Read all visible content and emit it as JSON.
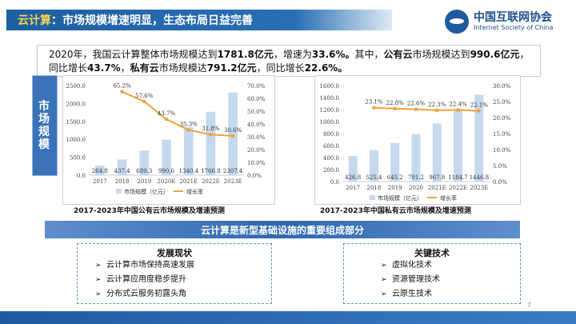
{
  "header": {
    "title_prefix": "云计算",
    "title_rest": "：市场规模增速明显，生态布局日益完善",
    "logo_cn": "中国互联网协会",
    "logo_en": "Internet Society of China"
  },
  "intro": {
    "p1": "2020年，我国云计算整体市场规模达到",
    "v1": "1781.8亿元",
    "p2": "，增速为",
    "v2": "33.6%。",
    "p3": "其中，",
    "v3": "公有云",
    "p4": "市场规模达到",
    "v4": "990.6亿元",
    "p5": "，同比增长",
    "v5": "43.7%",
    "p6": "，",
    "v6": "私有云",
    "p7": "市场规模达",
    "v7": "791.2亿元",
    "p8": "，同比增长",
    "v8": "22.6%。"
  },
  "side_tab": {
    "label": "市场规模"
  },
  "captions": {
    "chart1": "2017-2023年中国公有云市场规模及增速预测",
    "chart2": "2017-2023年中国私有云市场规模及增速预测"
  },
  "chart_data": [
    {
      "type": "bar",
      "categories": [
        "2017",
        "2018",
        "2019",
        "2020E",
        "2021E",
        "2022E",
        "2023E"
      ],
      "series": [
        {
          "name": "市场规模（亿元）",
          "type": "bar",
          "axis": "left",
          "values": [
            264.8,
            437.4,
            689.3,
            990.6,
            1340.4,
            1766.8,
            2307.4
          ],
          "labels": [
            "264.8",
            "437.4",
            "689.3",
            "990.6",
            "1340.4",
            "1766.8",
            "2307.4"
          ]
        },
        {
          "name": "增长率",
          "type": "line",
          "axis": "right",
          "values": [
            null,
            65.2,
            57.6,
            43.7,
            35.3,
            31.8,
            30.6
          ],
          "labels": [
            "",
            "65.2%",
            "57.6%",
            "43.7%",
            "35.3%",
            "31.8%",
            "30.6%"
          ]
        }
      ],
      "left_axis": {
        "ylim": [
          0,
          2500
        ],
        "ticks": [
          "0.0",
          "500.0",
          "1000.0",
          "1500.0",
          "2000.0",
          "2500.0"
        ]
      },
      "right_axis": {
        "ylim": [
          0,
          70
        ],
        "ticks": [
          "0.0%",
          "10.0%",
          "20.0%",
          "30.0%",
          "40.0%",
          "50.0%",
          "60.0%",
          "70.0%"
        ]
      },
      "legend_placement": "bottom",
      "grid": false,
      "colors": {
        "bar": "#c5d9ee",
        "line": "#f0a23a"
      }
    },
    {
      "type": "bar",
      "categories": [
        "2017",
        "2018",
        "2019",
        "2020",
        "2021E",
        "2022E",
        "2023E"
      ],
      "series": [
        {
          "name": "市场规模（亿元）",
          "type": "bar",
          "axis": "left",
          "values": [
            426.8,
            525.4,
            645.2,
            791.2,
            967.8,
            1184.7,
            1446.8
          ],
          "labels": [
            "426.8",
            "525.4",
            "645.2",
            "791.2",
            "967.8",
            "1184.7",
            "1446.8"
          ]
        },
        {
          "name": "增长率",
          "type": "line",
          "axis": "right",
          "values": [
            null,
            23.1,
            22.8,
            22.6,
            22.3,
            22.4,
            22.1
          ],
          "labels": [
            "",
            "23.1%",
            "22.8%",
            "22.6%",
            "22.3%",
            "22.4%",
            "22.1%"
          ]
        }
      ],
      "left_axis": {
        "ylim": [
          0,
          1600
        ],
        "ticks": [
          "0.0",
          "200.0",
          "400.0",
          "600.0",
          "800.0",
          "1000.0",
          "1200.0",
          "1400.0",
          "1600.0"
        ]
      },
      "right_axis": {
        "ylim": [
          0,
          30
        ],
        "ticks": [
          "0.0%",
          "5.0%",
          "10.0%",
          "15.0%",
          "20.0%",
          "25.0%",
          "30.0%"
        ]
      },
      "legend_placement": "bottom",
      "grid": false,
      "colors": {
        "bar": "#c5d9ee",
        "line": "#f0a23a"
      }
    }
  ],
  "section": {
    "title": "云计算是新型基础设施的重要组成部分"
  },
  "panel_left": {
    "title": "发展现状",
    "items": [
      "云计算市场保持高速发展",
      "云计算应用度稳步提升",
      "分布式云服务初露头角"
    ]
  },
  "panel_right": {
    "title": "关键技术",
    "items": [
      "虚拟化技术",
      "资源管理技术",
      "云原生技术"
    ]
  },
  "page": {
    "number": "7"
  },
  "icons": {
    "bullet": "arrow-right-icon",
    "logo": "isc-logo-icon"
  },
  "colors": {
    "brand_blue": "#1e5fa3",
    "highlight_yellow": "#f7d64a",
    "line_orange": "#f0a23a",
    "bar_blue": "#c5d9ee"
  }
}
